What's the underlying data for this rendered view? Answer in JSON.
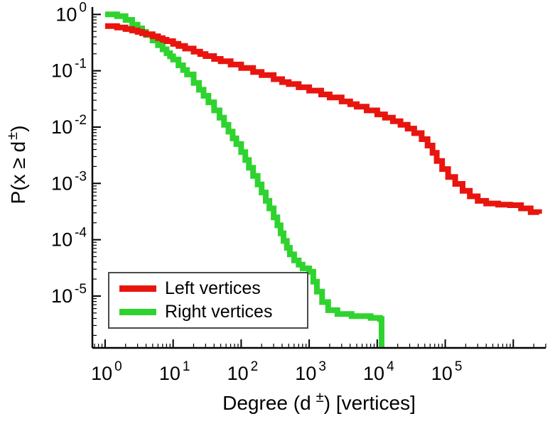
{
  "chart_data": {
    "type": "line",
    "subtype": "ccdf-step-loglog",
    "title": "",
    "xlabel": "Degree (d ±) [vertices]",
    "ylabel": "P(x ≥ d±)",
    "xscale": "log",
    "yscale": "log",
    "xlim": [
      0.65,
      3000000
    ],
    "ylim": [
      1.2e-06,
      1.35
    ],
    "grid": false,
    "legend_position": "lower-left",
    "background": "#ffffff",
    "axis_color": "#000000",
    "tick_base": "10",
    "x_tick_exponents": [
      0,
      1,
      2,
      3,
      4,
      5
    ],
    "y_tick_exponents": [
      0,
      -1,
      -2,
      -3,
      -4,
      -5
    ],
    "series": [
      {
        "name": "Left vertices",
        "color": "#e8150f",
        "points": [
          [
            1,
            0.62
          ],
          [
            1.5,
            0.585
          ],
          [
            2,
            0.55
          ],
          [
            2.5,
            0.52
          ],
          [
            3,
            0.49
          ],
          [
            3.5,
            0.465
          ],
          [
            4,
            0.445
          ],
          [
            5,
            0.41
          ],
          [
            6,
            0.38
          ],
          [
            7,
            0.355
          ],
          [
            8,
            0.335
          ],
          [
            10,
            0.3
          ],
          [
            12,
            0.275
          ],
          [
            15,
            0.248
          ],
          [
            20,
            0.218
          ],
          [
            25,
            0.198
          ],
          [
            30,
            0.182
          ],
          [
            40,
            0.162
          ],
          [
            50,
            0.148
          ],
          [
            70,
            0.129
          ],
          [
            100,
            0.112
          ],
          [
            150,
            0.095
          ],
          [
            200,
            0.084
          ],
          [
            300,
            0.071
          ],
          [
            400,
            0.063
          ],
          [
            500,
            0.058
          ],
          [
            700,
            0.051
          ],
          [
            1000,
            0.0445
          ],
          [
            1500,
            0.038
          ],
          [
            2000,
            0.0335
          ],
          [
            3000,
            0.0285
          ],
          [
            4000,
            0.0255
          ],
          [
            5000,
            0.023
          ],
          [
            7000,
            0.0198
          ],
          [
            10000,
            0.0168
          ],
          [
            13000,
            0.0147
          ],
          [
            17000,
            0.0127
          ],
          [
            22000,
            0.011
          ],
          [
            28000,
            0.0094
          ],
          [
            35000,
            0.0078
          ],
          [
            45000,
            0.0061
          ],
          [
            55000,
            0.0047
          ],
          [
            65000,
            0.0035
          ],
          [
            75000,
            0.0025
          ],
          [
            90000,
            0.0018
          ],
          [
            110000,
            0.0013
          ],
          [
            140000,
            0.00098
          ],
          [
            180000,
            0.00074
          ],
          [
            230000,
            0.00059
          ],
          [
            300000,
            0.00049
          ],
          [
            400000,
            0.00044
          ],
          [
            600000,
            0.00042
          ],
          [
            900000,
            0.00041
          ],
          [
            1300000,
            0.00036
          ],
          [
            1800000,
            0.00031
          ],
          [
            2400000,
            0.00029
          ]
        ]
      },
      {
        "name": "Right vertices",
        "color": "#2fd32f",
        "points": [
          [
            1,
            1.0
          ],
          [
            1.5,
            0.93
          ],
          [
            2,
            0.8
          ],
          [
            2.5,
            0.66
          ],
          [
            3,
            0.565
          ],
          [
            3.5,
            0.49
          ],
          [
            4,
            0.43
          ],
          [
            5,
            0.345
          ],
          [
            6,
            0.285
          ],
          [
            7,
            0.24
          ],
          [
            8,
            0.205
          ],
          [
            9,
            0.18
          ],
          [
            10,
            0.158
          ],
          [
            12,
            0.125
          ],
          [
            14,
            0.103
          ],
          [
            16,
            0.086
          ],
          [
            20,
            0.061
          ],
          [
            24,
            0.046
          ],
          [
            28,
            0.036
          ],
          [
            33,
            0.0275
          ],
          [
            40,
            0.0198
          ],
          [
            48,
            0.0147
          ],
          [
            56,
            0.011
          ],
          [
            65,
            0.0083
          ],
          [
            75,
            0.0063
          ],
          [
            85,
            0.005
          ],
          [
            100,
            0.0036
          ],
          [
            115,
            0.0026
          ],
          [
            130,
            0.0019
          ],
          [
            150,
            0.00136
          ],
          [
            175,
            0.00096
          ],
          [
            200,
            0.00069
          ],
          [
            230,
            0.00049
          ],
          [
            260,
            0.00036
          ],
          [
            300,
            0.00025
          ],
          [
            340,
            0.00018
          ],
          [
            380,
            0.00013
          ],
          [
            420,
            9.5e-05
          ],
          [
            470,
            7.2e-05
          ],
          [
            520,
            5.5e-05
          ],
          [
            600,
            4.3e-05
          ],
          [
            700,
            3.6e-05
          ],
          [
            800,
            3.1e-05
          ],
          [
            1000,
            2.7e-05
          ],
          [
            1150,
            1.8e-05
          ],
          [
            1300,
            1.2e-05
          ],
          [
            1550,
            7.8e-06
          ],
          [
            1900,
            5.6e-06
          ],
          [
            2600,
            4.8e-06
          ],
          [
            4200,
            4.4e-06
          ],
          [
            8000,
            4.1e-06
          ],
          [
            11000,
            3.9e-06
          ],
          [
            11600,
            8e-07
          ]
        ]
      }
    ]
  },
  "labels": {
    "ylabel_prefix": "P(x ≥ d",
    "ylabel_sup": "±",
    "ylabel_suffix": ")",
    "xlabel_prefix": "Degree (d",
    "xlabel_sup": "±",
    "xlabel_suffix": ") [vertices]"
  },
  "legend": {
    "entries": [
      {
        "label": "Left vertices"
      },
      {
        "label": "Right vertices"
      }
    ]
  }
}
